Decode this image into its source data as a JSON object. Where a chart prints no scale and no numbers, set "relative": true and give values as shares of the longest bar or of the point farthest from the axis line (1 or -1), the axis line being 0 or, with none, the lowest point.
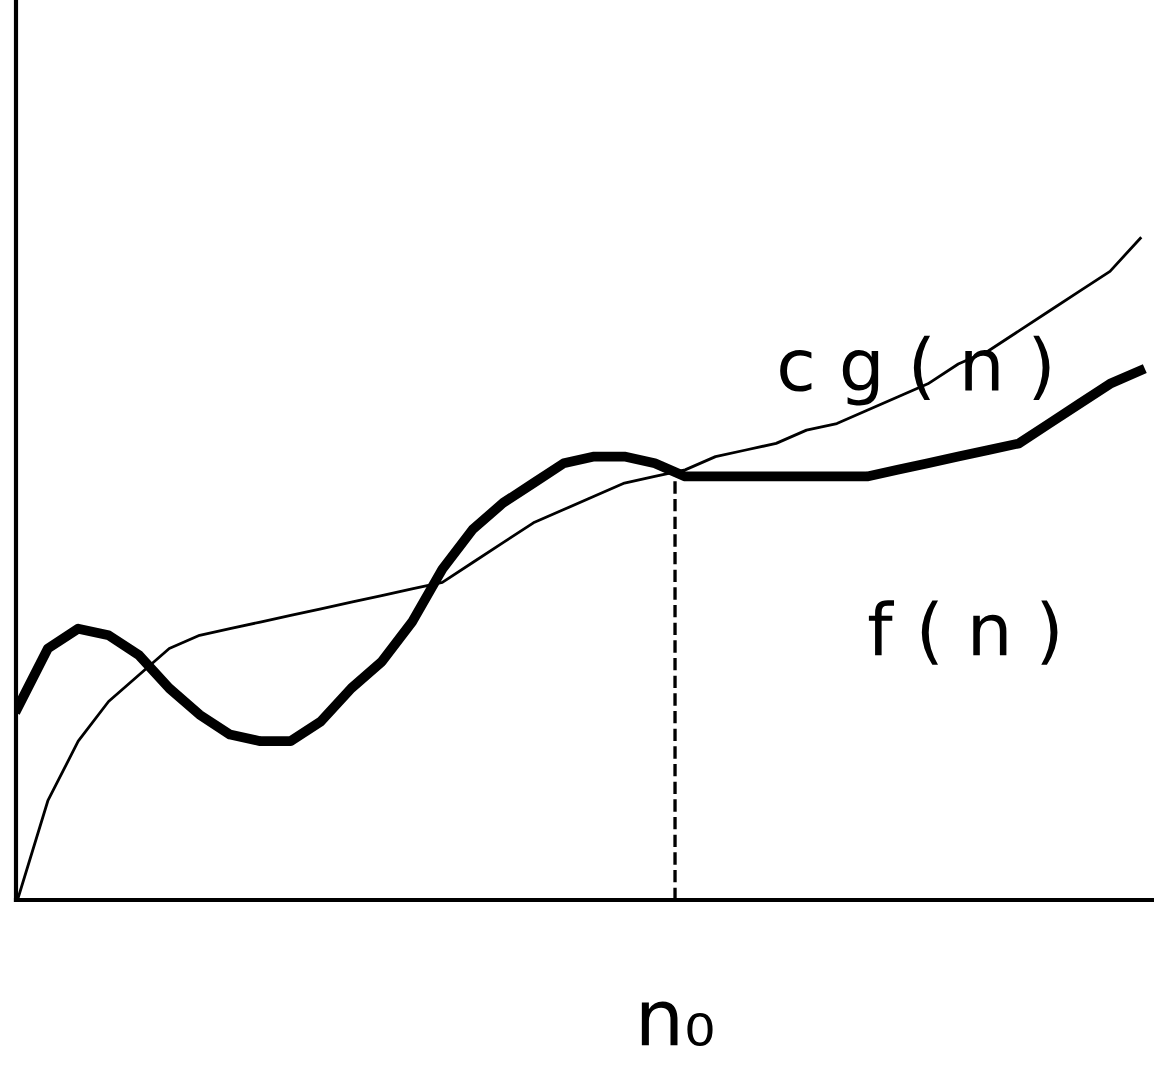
{
  "chart_data": {
    "type": "line",
    "relative": true,
    "categories": [
      null,
      null,
      null,
      null,
      null,
      null,
      null,
      null,
      null,
      null,
      null,
      null,
      null,
      null,
      null,
      null,
      null,
      null,
      null,
      null,
      null,
      null,
      null,
      null,
      null,
      null,
      null,
      null,
      null,
      null,
      null,
      null,
      null,
      null,
      null,
      null,
      null,
      null
    ],
    "series": [
      {
        "name": "c g ( n )",
        "color": "#000000",
        "values": [
          0,
          0.15,
          0.24,
          0.3,
          0.34,
          0.38,
          0.4,
          0.41,
          0.42,
          0.43,
          0.44,
          0.45,
          0.46,
          0.47,
          0.48,
          0.51,
          0.54,
          0.57,
          0.59,
          0.61,
          0.63,
          0.64,
          0.65,
          0.67,
          0.68,
          0.69,
          0.71,
          0.72,
          0.74,
          0.76,
          0.78,
          0.81,
          0.83,
          0.86,
          0.89,
          0.92,
          0.95,
          1
        ]
      },
      {
        "name": "f ( n )",
        "color": "#000000",
        "values": [
          0.29,
          0.38,
          0.41,
          0.4,
          0.37,
          0.32,
          0.28,
          0.25,
          0.24,
          0.24,
          0.27,
          0.32,
          0.36,
          0.42,
          0.5,
          0.56,
          0.6,
          0.63,
          0.66,
          0.67,
          0.67,
          0.66,
          0.64,
          0.64,
          0.64,
          0.64,
          0.64,
          0.64,
          0.64,
          0.65,
          0.66,
          0.67,
          0.68,
          0.69,
          0.72,
          0.75,
          0.78,
          0.8
        ]
      }
    ],
    "annotations": [
      "n₀"
    ],
    "marker": "none",
    "line_style": "solid",
    "grid": false,
    "legend": false
  }
}
